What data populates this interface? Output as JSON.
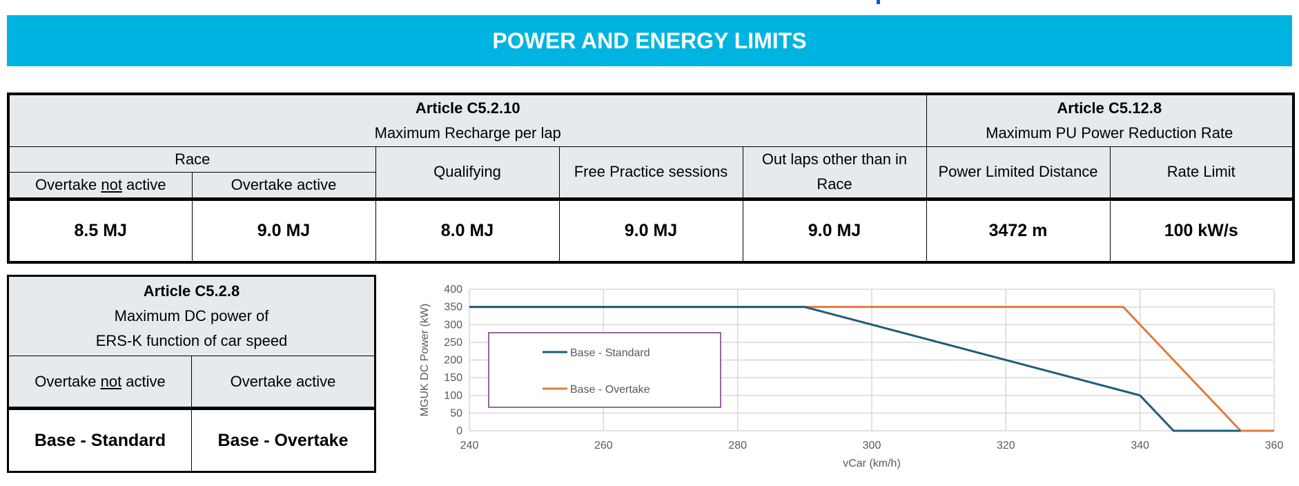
{
  "banner": {
    "title": "POWER AND ENERGY LIMITS"
  },
  "recharge": {
    "article": "Article C5.2.10",
    "title": "Maximum Recharge per lap",
    "race": "Race",
    "ot_not_pre": "Overtake ",
    "ot_not_u": "not",
    "ot_not_post": " active",
    "ot_active": "Overtake active",
    "qualifying": "Qualifying",
    "fp": "Free Practice sessions",
    "outlaps": "Out laps other than in Race",
    "values": [
      "8.5 MJ",
      "9.0 MJ",
      "8.0 MJ",
      "9.0 MJ",
      "9.0 MJ"
    ]
  },
  "reduction": {
    "article": "Article C5.12.8",
    "title": "Maximum PU Power Reduction Rate",
    "distance_label": "Power Limited Distance",
    "rate_label": "Rate Limit",
    "distance": "3472 m",
    "rate": "100 kW/s"
  },
  "dcpower": {
    "article": "Article C5.2.8",
    "title_1": "Maximum DC power of",
    "title_2": "ERS-K function of car speed",
    "ot_not_pre": "Overtake ",
    "ot_not_u": "not",
    "ot_not_post": " active",
    "ot_active": "Overtake active",
    "v_not": "Base - Standard",
    "v_active": "Base - Overtake"
  },
  "chart_data": {
    "type": "line",
    "xlabel": "vCar (km/h)",
    "ylabel": "MGUK DC Power (kW)",
    "xlim": [
      240,
      360
    ],
    "ylim": [
      0,
      400
    ],
    "xticks": [
      240,
      260,
      280,
      300,
      320,
      340,
      360
    ],
    "yticks": [
      0,
      50,
      100,
      150,
      200,
      250,
      300,
      350,
      400
    ],
    "grid": true,
    "legend": "left-center",
    "series": [
      {
        "name": "Base - Standard",
        "color": "#1f5c7a",
        "points": [
          [
            240,
            350
          ],
          [
            290,
            350
          ],
          [
            340,
            100
          ],
          [
            345,
            0
          ],
          [
            355,
            0
          ]
        ]
      },
      {
        "name": "Base - Overtake",
        "color": "#e07b39",
        "points": [
          [
            240,
            350
          ],
          [
            337.5,
            350
          ],
          [
            355,
            0
          ],
          [
            360,
            0
          ]
        ]
      }
    ]
  }
}
